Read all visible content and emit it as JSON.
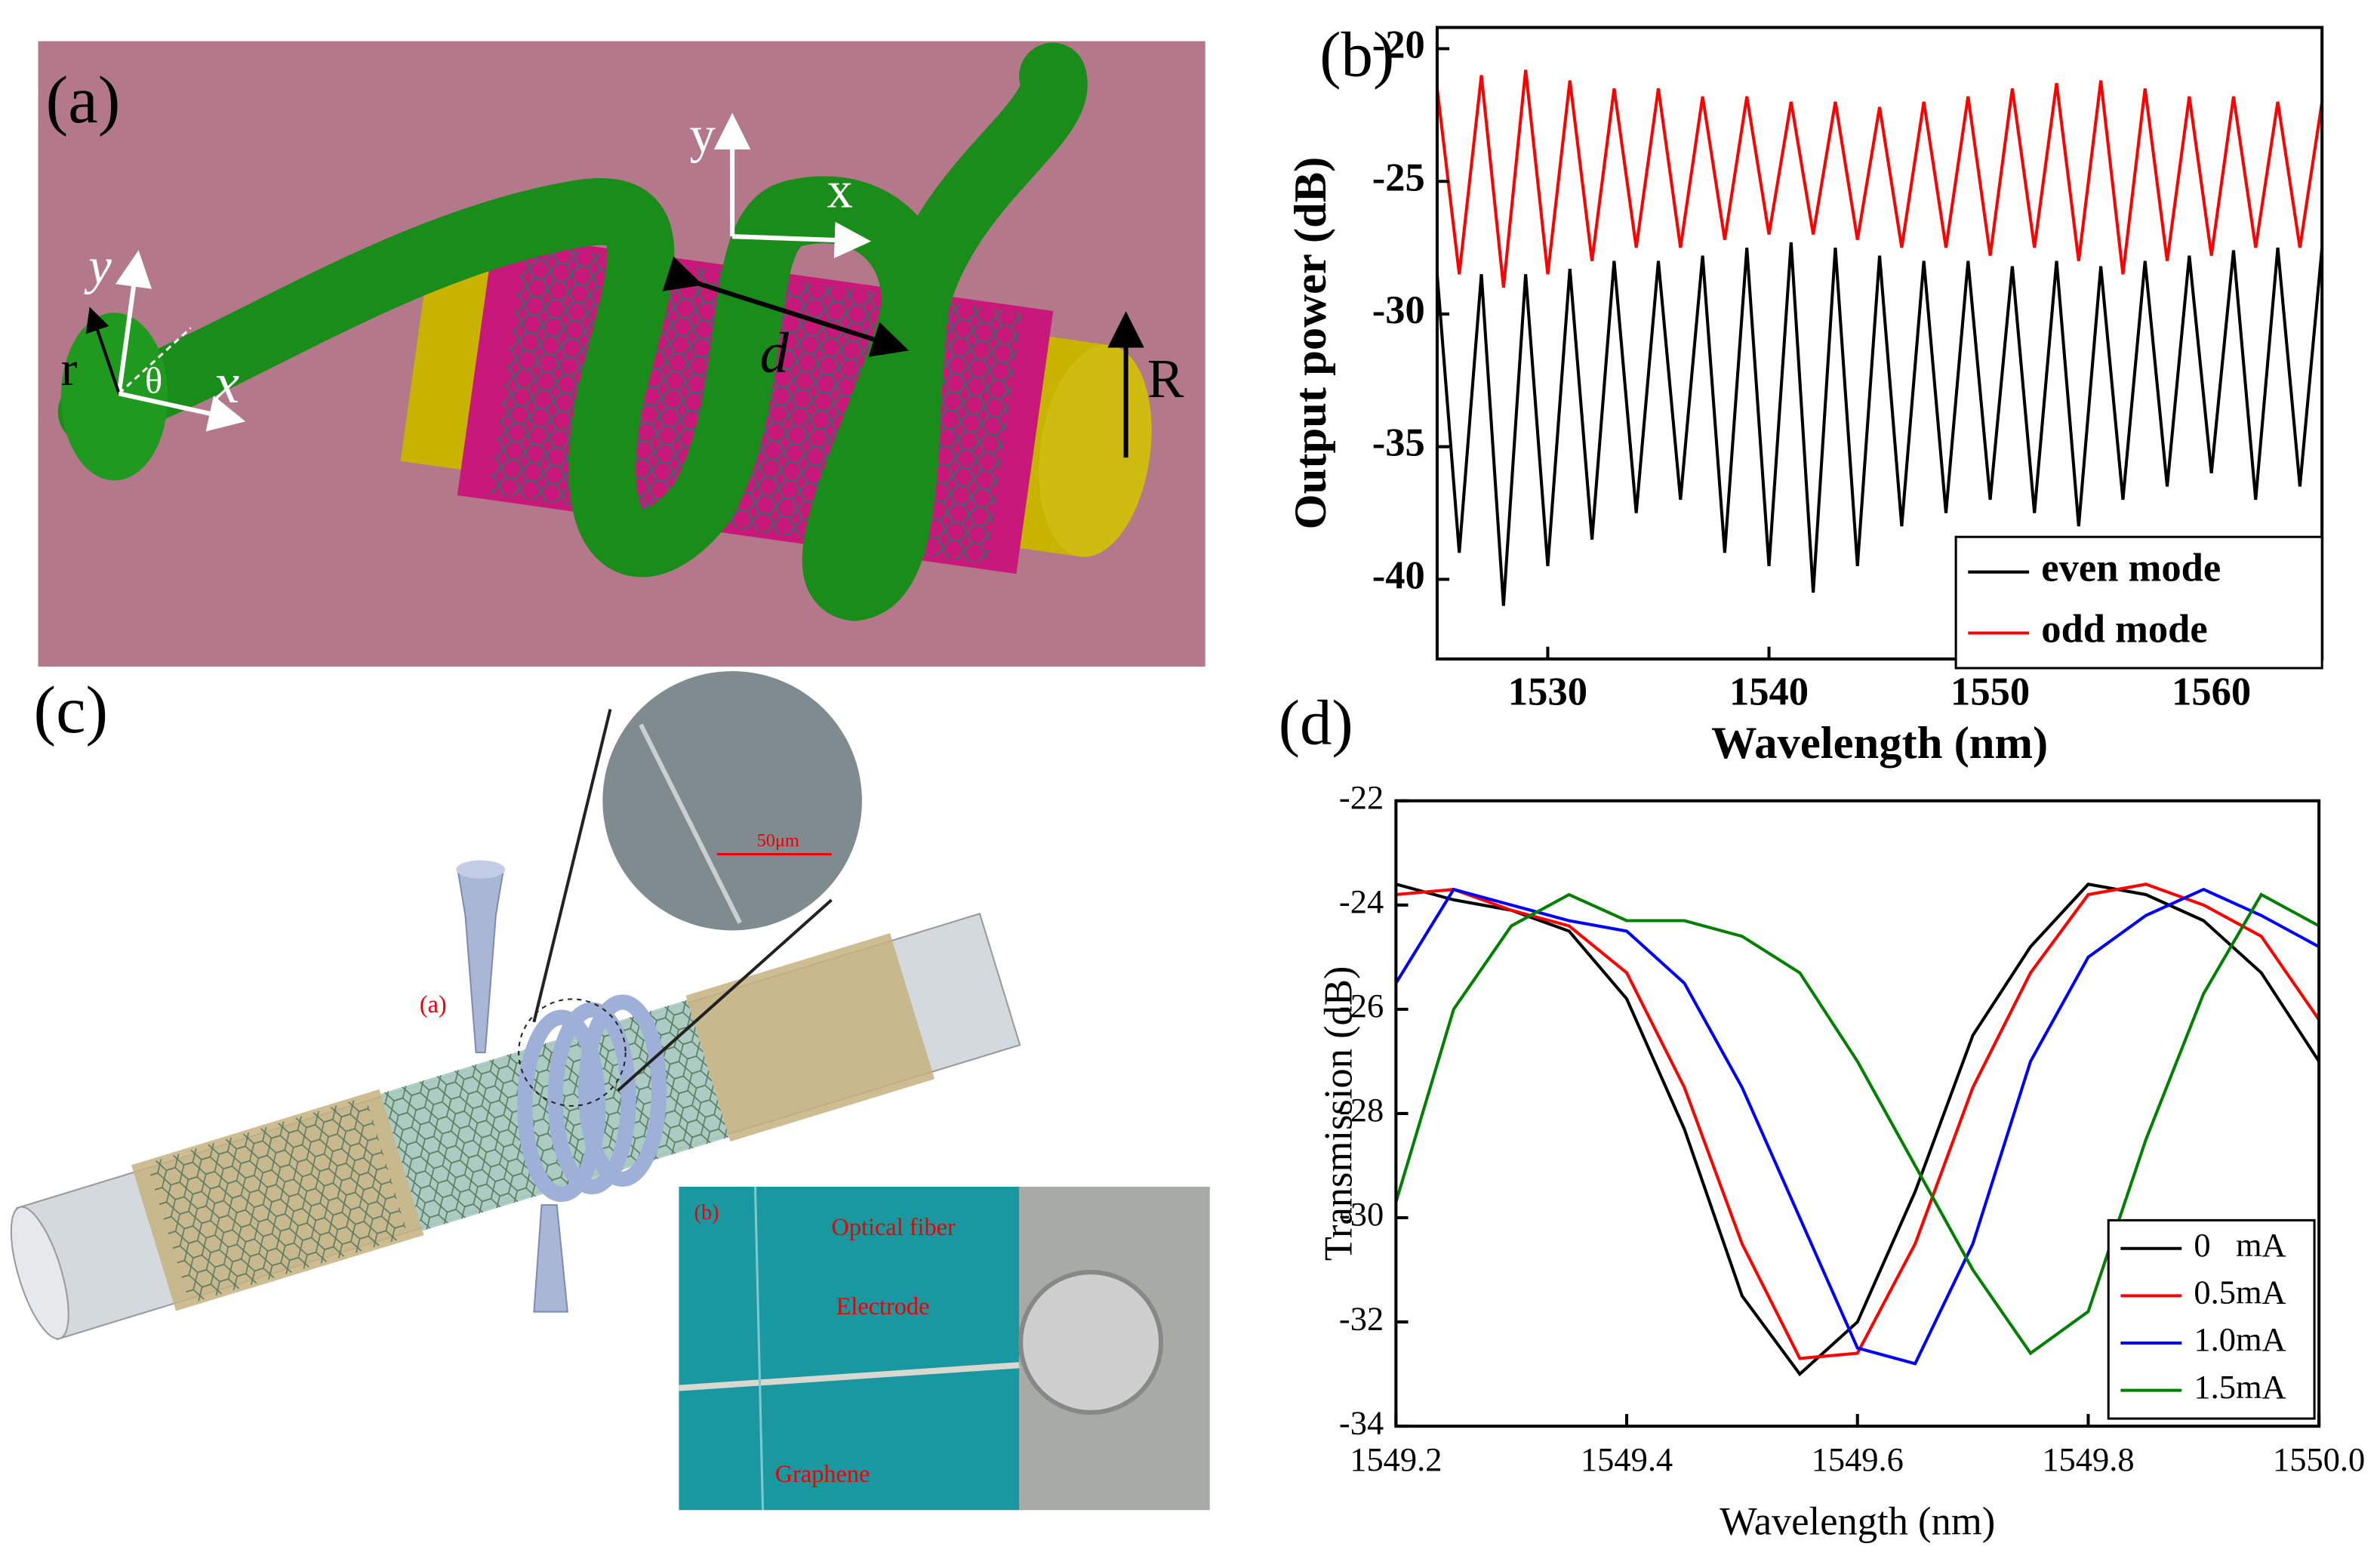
{
  "chart_data": [
    {
      "type": "line",
      "panel_label": "(b)",
      "xlabel": "Wavelength (nm)",
      "ylabel": "Output power (dB)",
      "xlim": [
        1525,
        1565
      ],
      "xticks": [
        1530,
        1540,
        1550,
        1560
      ],
      "ylim": [
        -43,
        -19.2
      ],
      "yticks": [
        -40,
        -35,
        -30,
        -25,
        -20
      ],
      "legend": "lower right",
      "x": [
        1525,
        1526,
        1527,
        1528,
        1529,
        1530,
        1531,
        1532,
        1533,
        1534,
        1535,
        1536,
        1537,
        1538,
        1539,
        1540,
        1541,
        1542,
        1543,
        1544,
        1545,
        1546,
        1547,
        1548,
        1549,
        1550,
        1551,
        1552,
        1553,
        1554,
        1555,
        1556,
        1557,
        1558,
        1559,
        1560,
        1561,
        1562,
        1563,
        1564,
        1565
      ],
      "series": [
        {
          "name": "even mode",
          "color": "#000000",
          "values": [
            -28.5,
            -39,
            -28.5,
            -41,
            -28.5,
            -39.5,
            -28.3,
            -38.5,
            -28,
            -37.5,
            -28,
            -37,
            -27.8,
            -39,
            -27.5,
            -39.5,
            -27.3,
            -40.5,
            -27.5,
            -39.5,
            -27.8,
            -38,
            -28,
            -37.5,
            -28,
            -37,
            -28.2,
            -37.5,
            -28,
            -38,
            -28.2,
            -37,
            -28,
            -36.5,
            -27.8,
            -36,
            -27.6,
            -37,
            -27.5,
            -36.5,
            -27.5
          ]
        },
        {
          "name": "odd mode",
          "color": "#ff0000",
          "values": [
            -21.5,
            -28.5,
            -21,
            -29,
            -20.8,
            -28.5,
            -21.2,
            -28,
            -21.5,
            -27.5,
            -21.5,
            -27.5,
            -21.8,
            -27.2,
            -21.8,
            -27,
            -22,
            -27,
            -22,
            -27.2,
            -22.2,
            -27.5,
            -22,
            -27.5,
            -21.8,
            -27.8,
            -21.5,
            -27.5,
            -21.3,
            -28,
            -21.2,
            -28.5,
            -21.5,
            -28,
            -21.8,
            -27.8,
            -21.8,
            -27.5,
            -22,
            -27.5,
            -22
          ]
        }
      ]
    },
    {
      "type": "line",
      "panel_label": "(d)",
      "xlabel": "Wavelength (nm)",
      "ylabel": "Transmission (dB)",
      "xlim": [
        1549.2,
        1550
      ],
      "xticks": [
        1549.2,
        1549.4,
        1549.6,
        1549.8,
        {
          "value": 1550,
          "label": "1550.0"
        }
      ],
      "ylim": [
        -34,
        -22
      ],
      "yticks": [
        -34,
        -32,
        -30,
        -28,
        -26,
        -24,
        -22
      ],
      "legend": "lower right",
      "x": [
        1549.2,
        1549.25,
        1549.3,
        1549.35,
        1549.4,
        1549.45,
        1549.5,
        1549.55,
        1549.6,
        1549.65,
        1549.7,
        1549.75,
        1549.8,
        1549.85,
        1549.9,
        1549.95,
        1550
      ],
      "series": [
        {
          "name": "0   mA",
          "color": "#000000",
          "values": [
            -23.6,
            -23.9,
            -24.1,
            -24.5,
            -25.8,
            -28.3,
            -31.5,
            -33,
            -32,
            -29.5,
            -26.5,
            -24.8,
            -23.6,
            -23.8,
            -24.3,
            -25.3,
            -27
          ]
        },
        {
          "name": "0.5mA",
          "color": "#ff0000",
          "values": [
            -23.8,
            -23.7,
            -24.1,
            -24.4,
            -25.3,
            -27.5,
            -30.5,
            -32.7,
            -32.6,
            -30.5,
            -27.5,
            -25.3,
            -23.8,
            -23.6,
            -24,
            -24.6,
            -26.2
          ]
        },
        {
          "name": "1.0mA",
          "color": "#0000ff",
          "values": [
            -25.5,
            -23.7,
            -24,
            -24.3,
            -24.5,
            -25.5,
            -27.5,
            -30,
            -32.5,
            -32.8,
            -30.5,
            -27,
            -25,
            -24.2,
            -23.7,
            -24.2,
            -24.8
          ]
        },
        {
          "name": "1.5mA",
          "color": "#008000",
          "values": [
            -29.7,
            -26,
            -24.4,
            -23.8,
            -24.3,
            -24.3,
            -24.6,
            -25.3,
            -27,
            -29,
            -31,
            -32.6,
            -31.8,
            -28.5,
            -25.7,
            -23.8,
            -24.4
          ]
        }
      ]
    }
  ],
  "panel_a": {
    "label": "(a)",
    "texts": [
      "y",
      "x",
      "y",
      "x",
      "r",
      "θ",
      "d",
      "R"
    ]
  },
  "panel_c": {
    "label": "(c)",
    "inset_a": "(a)",
    "scale_bar": "50μm",
    "inset_b": "(b)",
    "annotations": [
      "Optical fiber",
      "Electrode",
      "Graphene"
    ]
  }
}
